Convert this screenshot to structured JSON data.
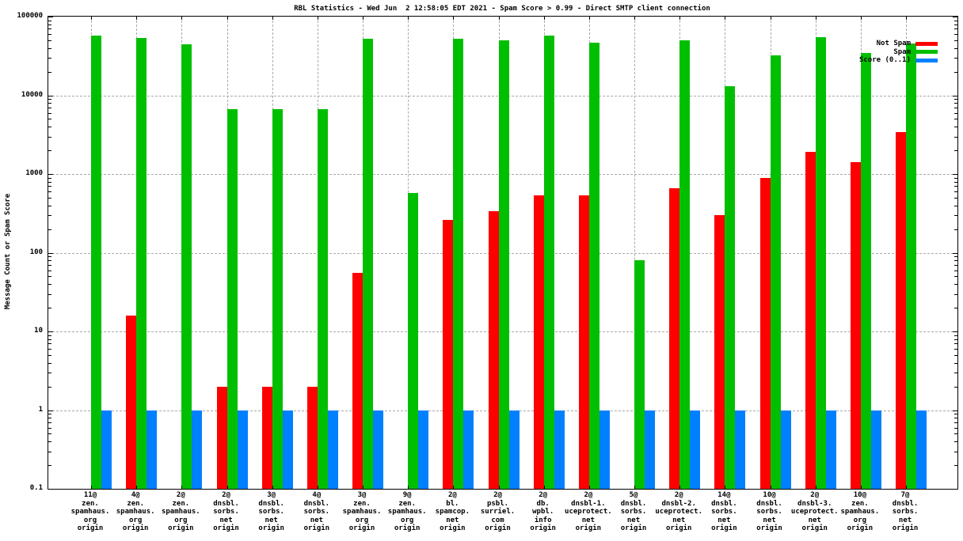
{
  "title": "RBL Statistics - Wed Jun  2 12:58:05 EDT 2021 - Spam Score > 0.99 - Direct SMTP client connection",
  "ylabel": "Message Count or Spam Score",
  "colors": {
    "not_spam": "#ff0000",
    "spam": "#00bf00",
    "score": "#0080ff",
    "grid": "#a9a9a9",
    "border": "#000000",
    "background": "#ffffff"
  },
  "legend": [
    {
      "label": "Not Spam",
      "color": "#ff0000"
    },
    {
      "label": "Spam",
      "color": "#00bf00"
    },
    {
      "label": "Score (0..1)",
      "color": "#0080ff"
    }
  ],
  "chart_data": {
    "type": "bar",
    "y_scale": "log",
    "ylim": [
      0.1,
      100000
    ],
    "y_ticks": [
      "100000",
      "10000",
      "1000",
      "100",
      "10",
      "1",
      "0.1"
    ],
    "grid": true,
    "legend_position": "top-right-inside",
    "title": "RBL Statistics - Wed Jun  2 12:58:05 EDT 2021 - Spam Score > 0.99 - Direct SMTP client connection",
    "xlabel": "",
    "ylabel": "Message Count or Spam Score",
    "categories": [
      [
        "11@",
        "zen.",
        "spamhaus.",
        "org",
        "origin"
      ],
      [
        "4@",
        "zen.",
        "spamhaus.",
        "org",
        "origin"
      ],
      [
        "2@",
        "zen.",
        "spamhaus.",
        "org",
        "origin"
      ],
      [
        "2@",
        "dnsbl.",
        "sorbs.",
        "net",
        "origin"
      ],
      [
        "3@",
        "dnsbl.",
        "sorbs.",
        "net",
        "origin"
      ],
      [
        "4@",
        "dnsbl.",
        "sorbs.",
        "net",
        "origin"
      ],
      [
        "3@",
        "zen.",
        "spamhaus.",
        "org",
        "origin"
      ],
      [
        "9@",
        "zen.",
        "spamhaus.",
        "org",
        "origin"
      ],
      [
        "2@",
        "bl.",
        "spamcop.",
        "net",
        "origin"
      ],
      [
        "2@",
        "psbl.",
        "surriel.",
        "com",
        "origin"
      ],
      [
        "2@",
        "db.",
        "wpbl.",
        "info",
        "origin"
      ],
      [
        "2@",
        "dnsbl-1.",
        "uceprotect.",
        "net",
        "origin"
      ],
      [
        "5@",
        "dnsbl.",
        "sorbs.",
        "net",
        "origin"
      ],
      [
        "2@",
        "dnsbl-2.",
        "uceprotect.",
        "net",
        "origin"
      ],
      [
        "14@",
        "dnsbl.",
        "sorbs.",
        "net",
        "origin"
      ],
      [
        "10@",
        "dnsbl.",
        "sorbs.",
        "net",
        "origin"
      ],
      [
        "2@",
        "dnsbl-3.",
        "uceprotect.",
        "net",
        "origin"
      ],
      [
        "10@",
        "zen.",
        "spamhaus.",
        "org",
        "origin"
      ],
      [
        "7@",
        "dnsbl.",
        "sorbs.",
        "net",
        "origin"
      ]
    ],
    "series": [
      {
        "name": "Not Spam",
        "color": "#ff0000",
        "values": [
          0,
          16,
          0,
          2,
          2,
          2,
          55,
          0,
          260,
          340,
          540,
          530,
          0,
          660,
          300,
          890,
          1900,
          1400,
          3400
        ]
      },
      {
        "name": "Spam",
        "color": "#00bf00",
        "values": [
          57000,
          53000,
          45000,
          6700,
          6700,
          6700,
          52000,
          580,
          52000,
          50000,
          58000,
          47000,
          81,
          50000,
          13000,
          32000,
          55000,
          34500,
          46000
        ]
      },
      {
        "name": "Score (0..1)",
        "color": "#0080ff",
        "values": [
          1,
          1,
          1,
          1,
          1,
          1,
          1,
          1,
          1,
          1,
          1,
          1,
          1,
          1,
          1,
          1,
          1,
          1,
          1
        ]
      }
    ]
  }
}
